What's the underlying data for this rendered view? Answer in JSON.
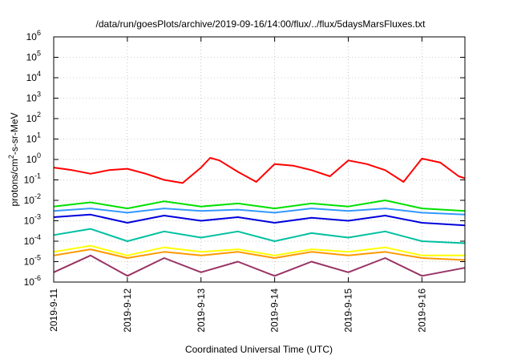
{
  "chart_data": {
    "type": "line",
    "title": "/data/run/goesPlots/archive/2019-09-16/14:00/flux/../flux/5daysMarsFluxes.txt",
    "xlabel": "Coordinated Universal Time (UTC)",
    "ylabel": "protons/cm2-s-sr-MeV",
    "ylabel_parts": {
      "main": "protons/cm",
      "sup": "2",
      "rest": "-s-sr-MeV"
    },
    "yscale": "log",
    "ylim": [
      1e-06,
      1000000.0
    ],
    "xlim": [
      "2019-09-11 00:00",
      "2019-09-16 14:00"
    ],
    "grid": true,
    "x_ticks": [
      "2019-9-11",
      "2019-9-12",
      "2019-9-13",
      "2019-9-14",
      "2019-9-15",
      "2019-9-16"
    ],
    "y_ticks": [
      {
        "value": 1e-06,
        "base": "10",
        "exp": "-6"
      },
      {
        "value": 1e-05,
        "base": "10",
        "exp": "-5"
      },
      {
        "value": 0.0001,
        "base": "10",
        "exp": "-4"
      },
      {
        "value": 0.001,
        "base": "10",
        "exp": "-3"
      },
      {
        "value": 0.01,
        "base": "10",
        "exp": "-2"
      },
      {
        "value": 0.1,
        "base": "10",
        "exp": "-1"
      },
      {
        "value": 1,
        "base": "10",
        "exp": "0"
      },
      {
        "value": 10.0,
        "base": "10",
        "exp": "1"
      },
      {
        "value": 100.0,
        "base": "10",
        "exp": "2"
      },
      {
        "value": 1000.0,
        "base": "10",
        "exp": "3"
      },
      {
        "value": 10000.0,
        "base": "10",
        "exp": "4"
      },
      {
        "value": 100000.0,
        "base": "10",
        "exp": "5"
      },
      {
        "value": 1000000.0,
        "base": "10",
        "exp": "6"
      }
    ],
    "series": [
      {
        "color": "#ff0000",
        "x": [
          "2019-09-11 00:00",
          "2019-09-11 06:00",
          "2019-09-11 12:00",
          "2019-09-11 18:00",
          "2019-09-12 00:00",
          "2019-09-12 06:00",
          "2019-09-12 12:00",
          "2019-09-12 18:00",
          "2019-09-13 00:00",
          "2019-09-13 03:00",
          "2019-09-13 06:00",
          "2019-09-13 12:00",
          "2019-09-13 18:00",
          "2019-09-14 00:00",
          "2019-09-14 06:00",
          "2019-09-14 12:00",
          "2019-09-14 18:00",
          "2019-09-15 00:00",
          "2019-09-15 06:00",
          "2019-09-15 12:00",
          "2019-09-15 18:00",
          "2019-09-16 00:00",
          "2019-09-16 06:00",
          "2019-09-16 12:00",
          "2019-09-16 14:00"
        ],
        "values": [
          0.4,
          0.3,
          0.2,
          0.3,
          0.35,
          0.2,
          0.1,
          0.07,
          0.4,
          1.2,
          0.9,
          0.25,
          0.08,
          0.6,
          0.5,
          0.3,
          0.15,
          0.9,
          0.6,
          0.3,
          0.08,
          1.1,
          0.7,
          0.15,
          0.12
        ]
      },
      {
        "color": "#00e000",
        "x": [
          "2019-09-11 00:00",
          "2019-09-11 12:00",
          "2019-09-12 00:00",
          "2019-09-12 12:00",
          "2019-09-13 00:00",
          "2019-09-13 12:00",
          "2019-09-14 00:00",
          "2019-09-14 12:00",
          "2019-09-15 00:00",
          "2019-09-15 12:00",
          "2019-09-16 00:00",
          "2019-09-16 14:00"
        ],
        "values": [
          0.005,
          0.008,
          0.004,
          0.009,
          0.005,
          0.007,
          0.004,
          0.007,
          0.005,
          0.01,
          0.004,
          0.003
        ]
      },
      {
        "color": "#3399ff",
        "x": [
          "2019-09-11 00:00",
          "2019-09-11 12:00",
          "2019-09-12 00:00",
          "2019-09-12 12:00",
          "2019-09-13 00:00",
          "2019-09-13 12:00",
          "2019-09-14 00:00",
          "2019-09-14 12:00",
          "2019-09-15 00:00",
          "2019-09-15 12:00",
          "2019-09-16 00:00",
          "2019-09-16 14:00"
        ],
        "values": [
          0.003,
          0.004,
          0.0025,
          0.004,
          0.003,
          0.0035,
          0.0025,
          0.004,
          0.003,
          0.004,
          0.0025,
          0.002
        ]
      },
      {
        "color": "#0000dd",
        "x": [
          "2019-09-11 00:00",
          "2019-09-11 12:00",
          "2019-09-12 00:00",
          "2019-09-12 12:00",
          "2019-09-13 00:00",
          "2019-09-13 12:00",
          "2019-09-14 00:00",
          "2019-09-14 12:00",
          "2019-09-15 00:00",
          "2019-09-15 12:00",
          "2019-09-16 00:00",
          "2019-09-16 14:00"
        ],
        "values": [
          0.0015,
          0.002,
          0.0008,
          0.0018,
          0.001,
          0.0015,
          0.0008,
          0.0014,
          0.001,
          0.0018,
          0.0008,
          0.0006
        ]
      },
      {
        "color": "#00c0a0",
        "x": [
          "2019-09-11 00:00",
          "2019-09-11 12:00",
          "2019-09-12 00:00",
          "2019-09-12 12:00",
          "2019-09-13 00:00",
          "2019-09-13 12:00",
          "2019-09-14 00:00",
          "2019-09-14 12:00",
          "2019-09-15 00:00",
          "2019-09-15 12:00",
          "2019-09-16 00:00",
          "2019-09-16 14:00"
        ],
        "values": [
          0.0002,
          0.0004,
          0.0001,
          0.0003,
          0.00015,
          0.0003,
          0.0001,
          0.00025,
          0.00015,
          0.0003,
          0.0001,
          8e-05
        ]
      },
      {
        "color": "#ffff00",
        "x": [
          "2019-09-11 00:00",
          "2019-09-11 12:00",
          "2019-09-12 00:00",
          "2019-09-12 12:00",
          "2019-09-13 00:00",
          "2019-09-13 12:00",
          "2019-09-14 00:00",
          "2019-09-14 12:00",
          "2019-09-15 00:00",
          "2019-09-15 12:00",
          "2019-09-16 00:00",
          "2019-09-16 14:00"
        ],
        "values": [
          3e-05,
          6e-05,
          2e-05,
          5e-05,
          3e-05,
          4e-05,
          2e-05,
          4e-05,
          3e-05,
          5e-05,
          2e-05,
          2e-05
        ]
      },
      {
        "color": "#ff9900",
        "x": [
          "2019-09-11 00:00",
          "2019-09-11 12:00",
          "2019-09-12 00:00",
          "2019-09-12 12:00",
          "2019-09-13 00:00",
          "2019-09-13 12:00",
          "2019-09-14 00:00",
          "2019-09-14 12:00",
          "2019-09-15 00:00",
          "2019-09-15 12:00",
          "2019-09-16 00:00",
          "2019-09-16 14:00"
        ],
        "values": [
          2e-05,
          4e-05,
          1.5e-05,
          3e-05,
          2e-05,
          3e-05,
          1.5e-05,
          3e-05,
          2e-05,
          3e-05,
          1.5e-05,
          1.2e-05
        ]
      },
      {
        "color": "#993366",
        "x": [
          "2019-09-11 00:00",
          "2019-09-11 12:00",
          "2019-09-12 00:00",
          "2019-09-12 12:00",
          "2019-09-13 00:00",
          "2019-09-13 12:00",
          "2019-09-14 00:00",
          "2019-09-14 12:00",
          "2019-09-15 00:00",
          "2019-09-15 12:00",
          "2019-09-16 00:00",
          "2019-09-16 14:00"
        ],
        "values": [
          3e-06,
          2e-05,
          2e-06,
          1.5e-05,
          3e-06,
          1e-05,
          2e-06,
          1e-05,
          3e-06,
          1.5e-05,
          2e-06,
          5e-06
        ]
      }
    ]
  }
}
